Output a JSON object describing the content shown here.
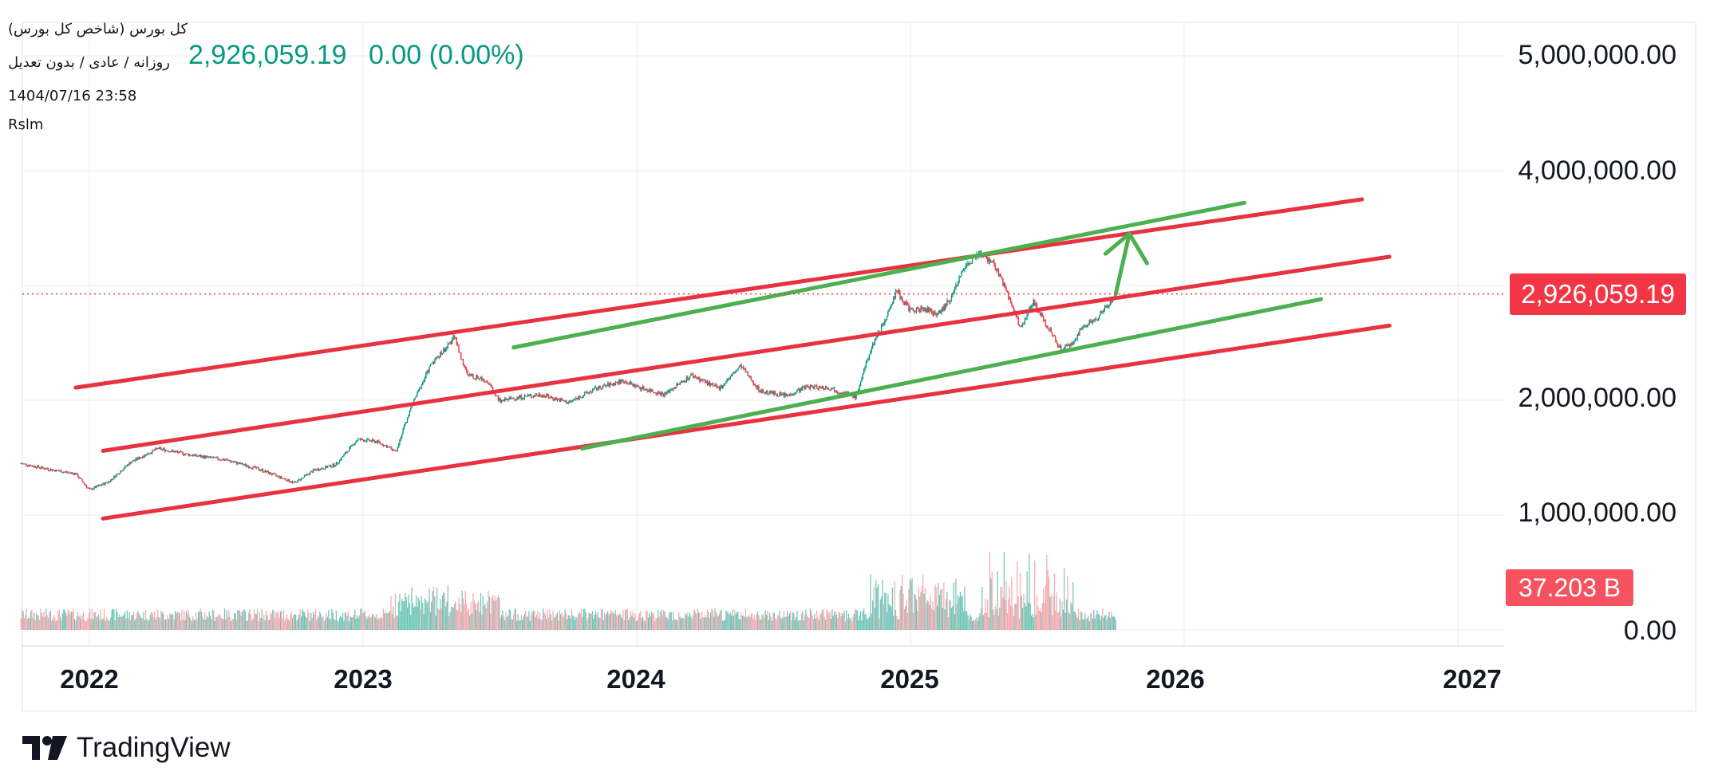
{
  "header": {
    "symbol_name": "کل بورس (شاخص کل بورس)",
    "chart_settings": "روزانه / عادی / بدون تعدیل",
    "datetime": "1404/07/16 23:58",
    "author": "Rslm",
    "last_price": "2,926,059.19",
    "change": "0.00 (0.00%)"
  },
  "price_axis": {
    "labels": [
      "5,000,000.00",
      "4,000,000.00",
      "2,000,000.00",
      "1,000,000.00",
      "0.00"
    ],
    "current_price_tag": "2,926,059.19",
    "volume_tag": "37.203 B"
  },
  "time_axis": {
    "labels": [
      "2022",
      "2023",
      "2024",
      "2025",
      "2026",
      "2027"
    ]
  },
  "brand": {
    "name": "TradingView"
  },
  "colors": {
    "up": "#089981",
    "down": "#f23645",
    "channel_red": "#e8323f",
    "channel_green": "#4caf50",
    "volume_up": "#6cc5b6",
    "volume_down": "#f7a7ad"
  },
  "chart_data": {
    "type": "candlestick",
    "title": "کل بورس (شاخص کل بورس)",
    "x_range": [
      2021.8,
      2027.1
    ],
    "y_range": [
      0,
      5400000
    ],
    "grid": true,
    "close_series": {
      "x": [
        2021.75,
        2021.85,
        2021.95,
        2022.0,
        2022.07,
        2022.15,
        2022.25,
        2022.38,
        2022.5,
        2022.62,
        2022.75,
        2022.82,
        2022.9,
        2022.98,
        2023.05,
        2023.12,
        2023.18,
        2023.25,
        2023.32,
        2023.33,
        2023.38,
        2023.45,
        2023.5,
        2023.55,
        2023.65,
        2023.75,
        2023.85,
        2023.95,
        2024.0,
        2024.1,
        2024.2,
        2024.3,
        2024.38,
        2024.45,
        2024.55,
        2024.62,
        2024.7,
        2024.8,
        2024.86,
        2024.9,
        2024.95,
        2025.0,
        2025.05,
        2025.1,
        2025.15,
        2025.2,
        2025.25,
        2025.3,
        2025.35,
        2025.4,
        2025.45,
        2025.5,
        2025.55,
        2025.6,
        2025.63,
        2025.68,
        2025.72,
        2025.75
      ],
      "y": [
        1450000,
        1400000,
        1360000,
        1220000,
        1290000,
        1460000,
        1580000,
        1520000,
        1480000,
        1400000,
        1280000,
        1390000,
        1440000,
        1660000,
        1640000,
        1560000,
        1970000,
        2320000,
        2500000,
        2580000,
        2220000,
        2180000,
        1990000,
        2020000,
        2050000,
        1980000,
        2100000,
        2170000,
        2120000,
        2050000,
        2220000,
        2100000,
        2300000,
        2080000,
        2040000,
        2120000,
        2110000,
        2030000,
        2480000,
        2660000,
        2950000,
        2780000,
        2800000,
        2740000,
        2900000,
        3180000,
        3280000,
        3200000,
        2960000,
        2630000,
        2850000,
        2650000,
        2440000,
        2520000,
        2650000,
        2700000,
        2830000,
        2926059.19
      ]
    },
    "volume_peak_label": "37.203 B",
    "annotations": [
      {
        "type": "red_channel_line",
        "from": [
          2021.95,
          2110000
        ],
        "to": [
          2026.65,
          3750000
        ]
      },
      {
        "type": "red_channel_line",
        "from": [
          2022.05,
          1560000
        ],
        "to": [
          2026.75,
          3250000
        ]
      },
      {
        "type": "red_channel_line",
        "from": [
          2022.05,
          970000
        ],
        "to": [
          2026.75,
          2650000
        ]
      },
      {
        "type": "green_channel_line",
        "from": [
          2023.55,
          2460000
        ],
        "to": [
          2026.22,
          3720000
        ]
      },
      {
        "type": "green_channel_line",
        "from": [
          2023.8,
          1580000
        ],
        "to": [
          2026.5,
          2880000
        ]
      },
      {
        "type": "green_arrow",
        "from": [
          2025.75,
          2926059.19
        ],
        "to": [
          2025.8,
          3450000
        ]
      }
    ]
  }
}
